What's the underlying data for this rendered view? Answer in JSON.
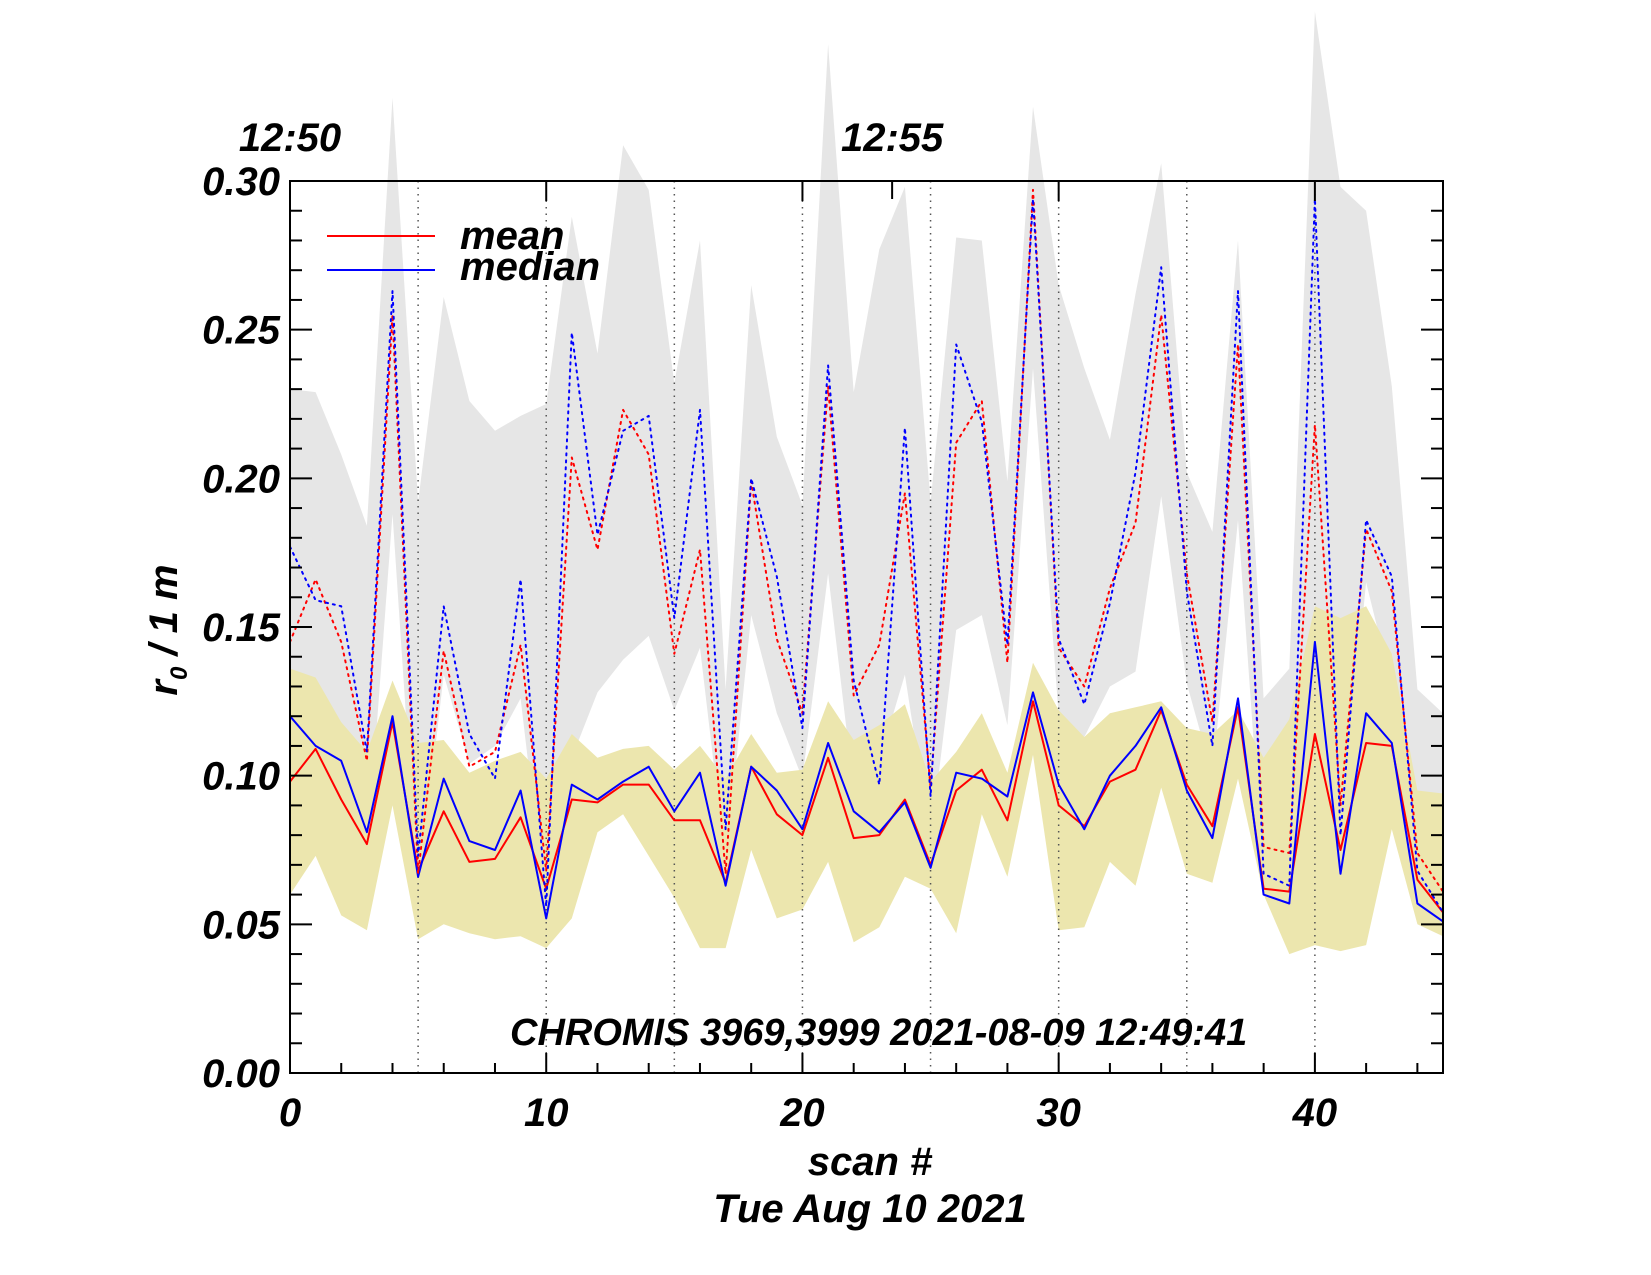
{
  "chart_data": {
    "type": "line",
    "xlabel": "scan #",
    "date_label": "Tue Aug 10 2021",
    "ylabel_main": "r",
    "ylabel_sub": "0",
    "ylabel_unit": "/ 1 m",
    "xlim": [
      0,
      45
    ],
    "ylim": [
      0.0,
      0.3
    ],
    "x_ticks": [
      0,
      10,
      20,
      30,
      40
    ],
    "x_tick_labels": [
      "0",
      "10",
      "20",
      "30",
      "40"
    ],
    "y_ticks": [
      0.0,
      0.05,
      0.1,
      0.15,
      0.2,
      0.25,
      0.3
    ],
    "y_tick_labels": [
      "0.00",
      "0.05",
      "0.10",
      "0.15",
      "0.20",
      "0.25",
      "0.30"
    ],
    "time_ticks": [
      {
        "scan": 0,
        "label": "12:50"
      },
      {
        "scan": 23.5,
        "label": "12:55"
      }
    ],
    "dotted_vlines": [
      5,
      10,
      15,
      20,
      25,
      30,
      35,
      40
    ],
    "annotation": "CHROMIS 3969,3999 2021-08-09 12:49:41",
    "legend": [
      {
        "label": "mean",
        "color": "#ff0000"
      },
      {
        "label": "median",
        "color": "#0000ff"
      }
    ],
    "x": [
      0,
      1,
      2,
      3,
      4,
      5,
      6,
      7,
      8,
      9,
      10,
      11,
      12,
      13,
      14,
      15,
      16,
      17,
      18,
      19,
      20,
      21,
      22,
      23,
      24,
      25,
      26,
      27,
      28,
      29,
      30,
      31,
      32,
      33,
      34,
      35,
      36,
      37,
      38,
      39,
      40,
      41,
      42,
      43,
      44,
      45
    ],
    "series": [
      {
        "name": "mean",
        "style": "solid",
        "color": "#ff0000",
        "values": [
          0.098,
          0.109,
          0.092,
          0.077,
          0.118,
          0.068,
          0.088,
          0.071,
          0.072,
          0.086,
          0.062,
          0.092,
          0.091,
          0.097,
          0.097,
          0.085,
          0.085,
          0.064,
          0.103,
          0.087,
          0.08,
          0.106,
          0.079,
          0.08,
          0.092,
          0.07,
          0.095,
          0.102,
          0.085,
          0.125,
          0.09,
          0.083,
          0.098,
          0.102,
          0.122,
          0.097,
          0.083,
          0.123,
          0.062,
          0.061,
          0.114,
          0.075,
          0.111,
          0.11,
          0.065,
          0.054
        ]
      },
      {
        "name": "median",
        "style": "solid",
        "color": "#0000ff",
        "values": [
          0.12,
          0.11,
          0.105,
          0.081,
          0.12,
          0.066,
          0.099,
          0.078,
          0.075,
          0.095,
          0.052,
          0.097,
          0.092,
          0.098,
          0.103,
          0.088,
          0.101,
          0.063,
          0.103,
          0.095,
          0.082,
          0.111,
          0.088,
          0.081,
          0.091,
          0.069,
          0.101,
          0.099,
          0.093,
          0.128,
          0.097,
          0.082,
          0.1,
          0.11,
          0.123,
          0.095,
          0.079,
          0.126,
          0.06,
          0.057,
          0.145,
          0.067,
          0.121,
          0.111,
          0.057,
          0.051
        ]
      },
      {
        "name": "mean (dotted)",
        "style": "dotted",
        "color": "#ff0000",
        "values": [
          0.145,
          0.166,
          0.145,
          0.105,
          0.255,
          0.067,
          0.142,
          0.103,
          0.108,
          0.144,
          0.068,
          0.207,
          0.176,
          0.223,
          0.208,
          0.141,
          0.176,
          0.067,
          0.199,
          0.146,
          0.121,
          0.231,
          0.127,
          0.144,
          0.195,
          0.096,
          0.212,
          0.226,
          0.138,
          0.297,
          0.143,
          0.13,
          0.163,
          0.185,
          0.255,
          0.168,
          0.118,
          0.245,
          0.076,
          0.074,
          0.218,
          0.09,
          0.183,
          0.162,
          0.074,
          0.061
        ]
      },
      {
        "name": "median (dotted)",
        "style": "dotted",
        "color": "#0000ff",
        "values": [
          0.177,
          0.159,
          0.157,
          0.108,
          0.263,
          0.073,
          0.157,
          0.114,
          0.099,
          0.166,
          0.056,
          0.249,
          0.181,
          0.216,
          0.221,
          0.153,
          0.223,
          0.082,
          0.2,
          0.167,
          0.116,
          0.238,
          0.132,
          0.097,
          0.217,
          0.093,
          0.245,
          0.219,
          0.144,
          0.294,
          0.146,
          0.124,
          0.158,
          0.202,
          0.271,
          0.162,
          0.11,
          0.263,
          0.067,
          0.063,
          0.294,
          0.08,
          0.186,
          0.167,
          0.068,
          0.054
        ]
      },
      {
        "name": "mean band",
        "style": "band",
        "color": "#ece6ae",
        "upper": [
          0.136,
          0.133,
          0.118,
          0.108,
          0.132,
          0.111,
          0.112,
          0.101,
          0.105,
          0.108,
          0.099,
          0.114,
          0.106,
          0.109,
          0.11,
          0.102,
          0.11,
          0.099,
          0.114,
          0.101,
          0.102,
          0.125,
          0.112,
          0.117,
          0.124,
          0.098,
          0.108,
          0.121,
          0.101,
          0.138,
          0.122,
          0.113,
          0.121,
          0.123,
          0.125,
          0.116,
          0.114,
          0.122,
          0.106,
          0.119,
          0.157,
          0.153,
          0.157,
          0.141,
          0.095,
          0.094
        ],
        "lower": [
          0.06,
          0.073,
          0.053,
          0.048,
          0.09,
          0.045,
          0.05,
          0.047,
          0.045,
          0.046,
          0.042,
          0.052,
          0.081,
          0.087,
          0.073,
          0.059,
          0.042,
          0.042,
          0.075,
          0.052,
          0.055,
          0.071,
          0.044,
          0.049,
          0.066,
          0.062,
          0.047,
          0.087,
          0.066,
          0.107,
          0.048,
          0.049,
          0.071,
          0.063,
          0.096,
          0.067,
          0.064,
          0.099,
          0.06,
          0.04,
          0.043,
          0.041,
          0.043,
          0.082,
          0.05,
          0.046
        ]
      },
      {
        "name": "dotted band",
        "style": "band",
        "color": "#e6e6e6",
        "upper": [
          0.23,
          0.229,
          0.208,
          0.184,
          0.328,
          0.192,
          0.261,
          0.226,
          0.216,
          0.221,
          0.225,
          0.288,
          0.242,
          0.312,
          0.297,
          0.232,
          0.28,
          0.129,
          0.265,
          0.214,
          0.191,
          0.346,
          0.229,
          0.277,
          0.298,
          0.192,
          0.281,
          0.28,
          0.199,
          0.325,
          0.265,
          0.237,
          0.213,
          0.262,
          0.306,
          0.202,
          0.182,
          0.28,
          0.126,
          0.136,
          0.357,
          0.298,
          0.29,
          0.231,
          0.129,
          0.121
        ],
        "lower": [
          0.133,
          0.116,
          0.109,
          0.072,
          0.188,
          0.059,
          0.134,
          0.104,
          0.11,
          0.126,
          0.053,
          0.106,
          0.128,
          0.139,
          0.147,
          0.122,
          0.143,
          0.07,
          0.154,
          0.121,
          0.099,
          0.168,
          0.095,
          0.105,
          0.134,
          0.078,
          0.149,
          0.154,
          0.117,
          0.237,
          0.12,
          0.113,
          0.13,
          0.135,
          0.194,
          0.131,
          0.1,
          0.186,
          0.064,
          0.061,
          0.158,
          0.077,
          0.165,
          0.13,
          0.062,
          0.052
        ]
      }
    ]
  }
}
